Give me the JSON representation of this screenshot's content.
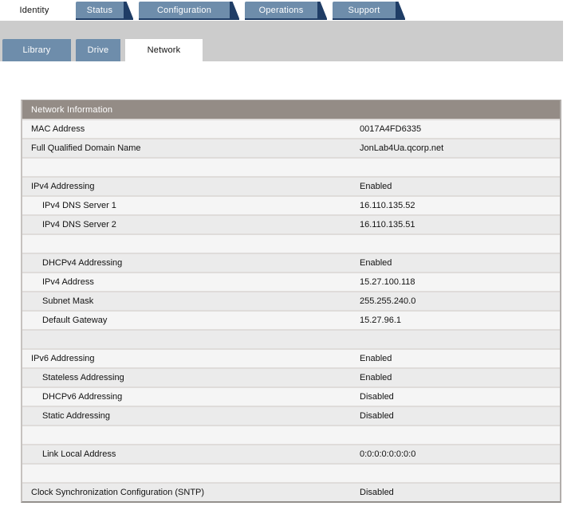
{
  "primary_tabs": [
    {
      "label": "Identity",
      "active": true
    },
    {
      "label": "Status",
      "active": false
    },
    {
      "label": "Configuration",
      "active": false
    },
    {
      "label": "Operations",
      "active": false
    },
    {
      "label": "Support",
      "active": false
    }
  ],
  "secondary_tabs": [
    {
      "label": "Library",
      "active": false
    },
    {
      "label": "Drive",
      "active": false
    },
    {
      "label": "Network",
      "active": true
    }
  ],
  "table": {
    "title": "Network Information",
    "rows": [
      {
        "label": "MAC Address",
        "value": "0017A4FD6335",
        "indent": 0
      },
      {
        "label": "Full Qualified Domain Name",
        "value": "JonLab4Ua.qcorp.net",
        "indent": 0
      },
      {
        "spacer": true
      },
      {
        "label": "IPv4 Addressing",
        "value": "Enabled",
        "indent": 0
      },
      {
        "label": "IPv4 DNS Server 1",
        "value": "16.110.135.52",
        "indent": 1
      },
      {
        "label": "IPv4 DNS Server 2",
        "value": "16.110.135.51",
        "indent": 1
      },
      {
        "spacer": true
      },
      {
        "label": "DHCPv4 Addressing",
        "value": "Enabled",
        "indent": 1
      },
      {
        "label": "IPv4 Address",
        "value": "15.27.100.118",
        "indent": 1
      },
      {
        "label": "Subnet Mask",
        "value": "255.255.240.0",
        "indent": 1
      },
      {
        "label": "Default Gateway",
        "value": "15.27.96.1",
        "indent": 1
      },
      {
        "spacer": true
      },
      {
        "label": "IPv6 Addressing",
        "value": "Enabled",
        "indent": 0
      },
      {
        "label": "Stateless Addressing",
        "value": "Enabled",
        "indent": 1
      },
      {
        "label": "DHCPv6 Addressing",
        "value": "Disabled",
        "indent": 1
      },
      {
        "label": "Static Addressing",
        "value": "Disabled",
        "indent": 1
      },
      {
        "spacer": true
      },
      {
        "label": "Link Local Address",
        "value": "0:0:0:0:0:0:0:0",
        "indent": 1
      },
      {
        "spacer": true
      },
      {
        "label": "Clock Synchronization Configuration (SNTP)",
        "value": "Disabled",
        "indent": 0
      }
    ]
  },
  "colors": {
    "tab_blue": "#6e8dab",
    "tab_dark": "#1f3d66",
    "band_gray": "#cccccc",
    "header_taupe": "#948c86",
    "row_light": "#f5f5f5",
    "row_dark": "#ebebeb"
  }
}
